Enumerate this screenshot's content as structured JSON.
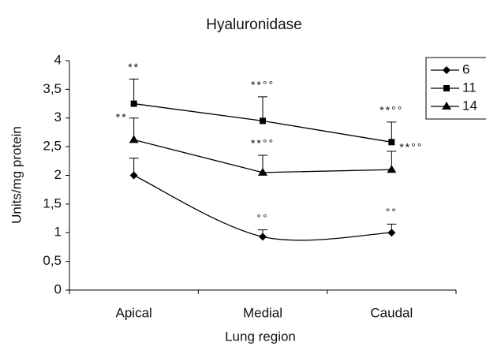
{
  "chart_data": {
    "type": "line",
    "title": "Hyaluronidase",
    "x_label": "Lung region",
    "y_label": "Units/mg protein",
    "categories": [
      "Apical",
      "Medial",
      "Caudal"
    ],
    "ylim": [
      0,
      4
    ],
    "yticks": [
      0,
      {
        "value": 0.5,
        "label": "0,5"
      },
      1,
      {
        "value": 1.5,
        "label": "1,5"
      },
      2,
      {
        "value": 2.5,
        "label": "2,5"
      },
      3,
      {
        "value": 3.5,
        "label": "3,5"
      },
      4
    ],
    "legend": "top-right",
    "series": [
      {
        "name": "6",
        "color": "#000000",
        "marker": "diamond",
        "smooth": true,
        "values": [
          2.0,
          0.93,
          1.0
        ],
        "errors": [
          0.3,
          0.12,
          0.15
        ],
        "point_labels": [
          null,
          "°°",
          "°°"
        ]
      },
      {
        "name": "11",
        "color": "#000000",
        "marker": "square",
        "smooth": false,
        "values": [
          3.25,
          2.95,
          2.58
        ],
        "errors": [
          0.43,
          0.42,
          0.35
        ],
        "point_labels": [
          "**",
          "**°°",
          "**°°"
        ]
      },
      {
        "name": "14",
        "color": "#000000",
        "marker": "triangle",
        "smooth": false,
        "values": [
          2.62,
          2.05,
          2.1
        ],
        "errors": [
          0.38,
          0.3,
          0.32
        ],
        "point_labels": [
          "**",
          "**°°",
          "**°°"
        ]
      }
    ]
  }
}
